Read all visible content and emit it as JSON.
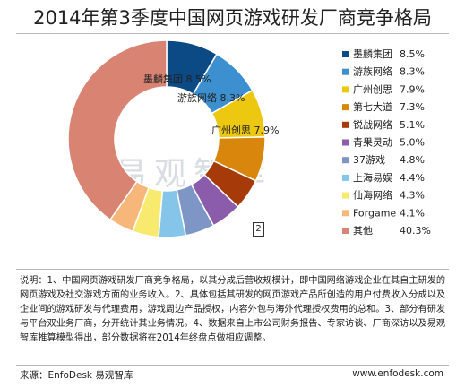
{
  "title": "2014年第3季度中国网页游戏研发厂商竞争格局",
  "watermark": "易观智库",
  "marker": "2",
  "note": "说明：1、中国网页游戏研发厂商竞争格局，以其分成后营收规模计，即中国网络游戏企业在其自主研发的网页游戏及社交游戏方面的业务收入。2、具体包括其研发的网页游戏产品所创造的用户付费收入分成以及企业间的游戏研发与代理费用，游戏周边产品授权，内容外包与海外代理授权费用的总和。3、部分有研发与平台双业务厂商，分开统计其业务情况。4、数据来自上市公司财务报告、专家访谈、厂商深访以及易观智库推算模型得出，部分数据将在2014年终盘点做相应调整。",
  "source": "来源：EnfoDesk 易观智库",
  "website": "www.enfodesk.com",
  "chart_data": {
    "type": "pie",
    "donut": true,
    "title": "2014年第3季度中国网页游戏研发厂商竞争格局",
    "legend_position": "right",
    "unit": "%",
    "slices": [
      {
        "name": "墨麟集团",
        "label": "8.5%",
        "value": 8.5,
        "color": "#0b4a85"
      },
      {
        "name": "游族网络",
        "label": "8.3%",
        "value": 8.3,
        "color": "#3c90cf"
      },
      {
        "name": "广州创思",
        "label": "7.9%",
        "value": 7.9,
        "color": "#ecc811"
      },
      {
        "name": "第七大道",
        "label": "7.3%",
        "value": 7.3,
        "color": "#d9870c"
      },
      {
        "name": "锐战网络",
        "label": "5.1%",
        "value": 5.1,
        "color": "#a63a08"
      },
      {
        "name": "青果灵动",
        "label": "5.0%",
        "value": 5.0,
        "color": "#8a5cab"
      },
      {
        "name": "37游戏",
        "label": "4.8%",
        "value": 4.8,
        "color": "#7d96c5"
      },
      {
        "name": "上海易娱",
        "label": "4.4%",
        "value": 4.4,
        "color": "#86c5ea"
      },
      {
        "name": "仙海网络",
        "label": "4.3%",
        "value": 4.3,
        "color": "#f7ea6e"
      },
      {
        "name": "Forgame",
        "label": "4.1%",
        "value": 4.1,
        "color": "#f8b77a"
      },
      {
        "name": "其他",
        "label": "40.3%",
        "value": 40.3,
        "color": "#d98373"
      }
    ],
    "inside_labels": [
      {
        "slice": 0,
        "text": "墨麟集团  8.5%"
      },
      {
        "slice": 1,
        "text": "游族网络  8.3%"
      },
      {
        "slice": 2,
        "text": "广州创思  7.9%"
      }
    ]
  }
}
